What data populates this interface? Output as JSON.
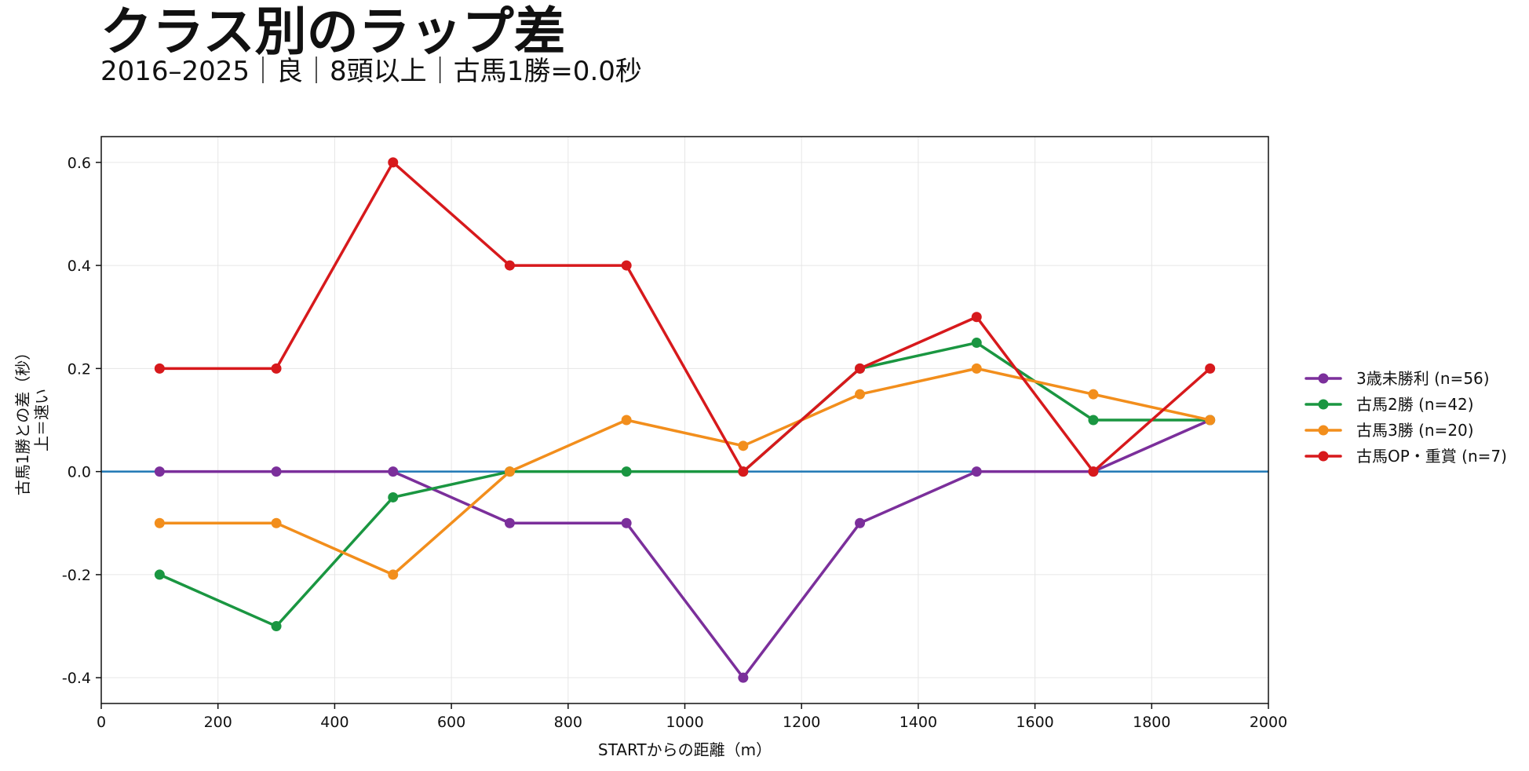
{
  "title": "クラス別のラップ差",
  "subtitle": "2016–2025｜良｜8頭以上｜古馬1勝=0.0秒",
  "chart_data": {
    "type": "line",
    "title": "クラス別のラップ差",
    "subtitle": "2016–2025｜良｜8頭以上｜古馬1勝=0.0秒",
    "xlabel": "STARTからの距離（m）",
    "ylabel_lines": [
      "古馬1勝との差（秒）",
      "上＝速い"
    ],
    "xlim": [
      0,
      2000
    ],
    "ylim": [
      -0.45,
      0.65
    ],
    "x_ticks": [
      0,
      200,
      400,
      600,
      800,
      1000,
      1200,
      1400,
      1600,
      1800,
      2000
    ],
    "x_tick_labels": [
      "0",
      "200",
      "400",
      "600",
      "800",
      "1000",
      "1200",
      "1400",
      "1600",
      "1800",
      "2000"
    ],
    "y_ticks": [
      -0.4,
      -0.2,
      0.0,
      0.2,
      0.4,
      0.6
    ],
    "y_tick_labels": [
      "-0.4",
      "-0.2",
      "0.0",
      "0.2",
      "0.4",
      "0.6"
    ],
    "grid": true,
    "reference_line": {
      "y": 0.0,
      "color": "#1f77b4"
    },
    "legend_position": "right",
    "x": [
      100,
      300,
      500,
      700,
      900,
      1100,
      1300,
      1500,
      1700,
      1900
    ],
    "series": [
      {
        "name": "3歳未勝利 (n=56)",
        "color": "#7b2f9b",
        "values": [
          0.0,
          0.0,
          0.0,
          -0.1,
          -0.1,
          -0.4,
          -0.1,
          0.0,
          0.0,
          0.1
        ]
      },
      {
        "name": "古馬2勝 (n=42)",
        "color": "#1a9641",
        "values": [
          -0.2,
          -0.3,
          -0.05,
          0.0,
          0.0,
          0.0,
          0.2,
          0.25,
          0.1,
          0.1
        ]
      },
      {
        "name": "古馬3勝 (n=20)",
        "color": "#f28e1c",
        "values": [
          -0.1,
          -0.1,
          -0.2,
          0.0,
          0.1,
          0.05,
          0.15,
          0.2,
          0.15,
          0.1
        ]
      },
      {
        "name": "古馬OP・重賞 (n=7)",
        "color": "#d7191c",
        "values": [
          0.2,
          0.2,
          0.6,
          0.4,
          0.4,
          0.0,
          0.2,
          0.3,
          0.0,
          0.2
        ]
      }
    ]
  }
}
